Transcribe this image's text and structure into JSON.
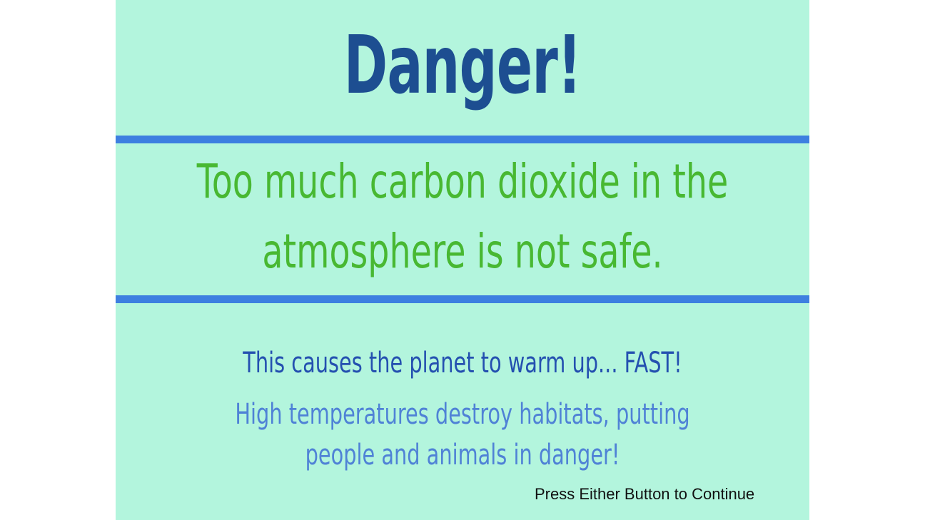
{
  "slide": {
    "title": "Danger!",
    "headline_lines": [
      "Too much carbon dioxide in the",
      "atmosphere is not safe."
    ],
    "warming_text": "This causes the planet to warm up... FAST!",
    "habitat_lines": [
      "High temperatures destroy habitats, putting",
      "people and animals in danger!"
    ],
    "continue_prompt": "Press Either Button to Continue"
  },
  "colors": {
    "background": "#b3f5dd",
    "title": "#1d4e91",
    "rule": "#3d7fe0",
    "headline": "#48b832",
    "warming_text": "#2450b0",
    "habitat_text": "#4f82d6"
  }
}
